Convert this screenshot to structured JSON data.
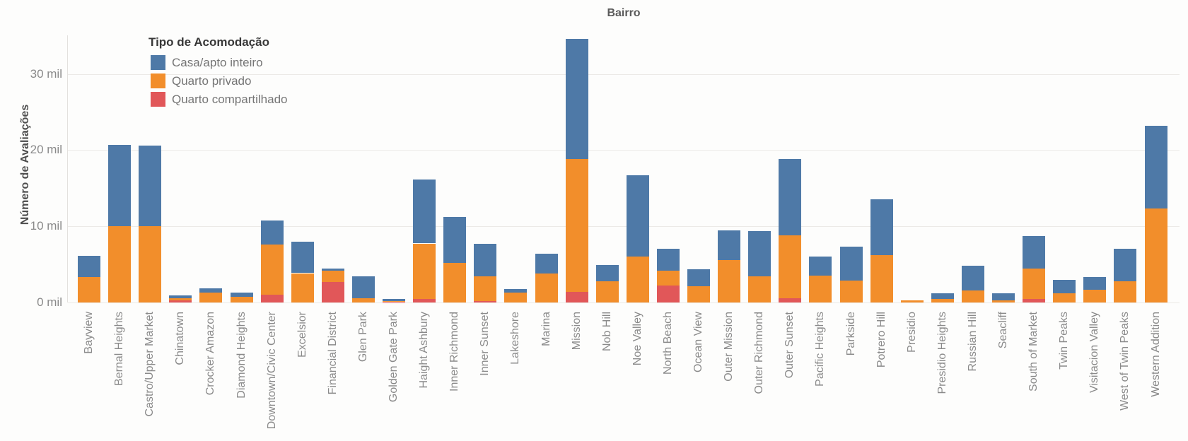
{
  "title": "Bairro",
  "y_axis": {
    "title": "Número de Avaliações",
    "ticks": [
      {
        "label": "0 mil",
        "value": 0
      },
      {
        "label": "10 mil",
        "value": 10
      },
      {
        "label": "20 mil",
        "value": 20
      },
      {
        "label": "30 mil",
        "value": 30
      }
    ]
  },
  "legend": {
    "title": "Tipo de Acomodação",
    "items": [
      {
        "key": "casa-apto-inteiro",
        "label": "Casa/apto inteiro",
        "color": "#4e79a7"
      },
      {
        "key": "quarto-privado",
        "label": "Quarto privado",
        "color": "#f28e2b"
      },
      {
        "key": "quarto-compartilhado",
        "label": "Quarto compartilhado",
        "color": "#e15759"
      }
    ]
  },
  "colors": {
    "casa_apto_inteiro": "#4e79a7",
    "quarto_privado": "#f28e2b",
    "quarto_compartilhado": "#e15759",
    "gridline": "#eceae7",
    "tick_text": "#8a8a8a"
  },
  "chart_data": {
    "type": "bar",
    "stacked": true,
    "title": "Bairro",
    "xlabel": "Bairro",
    "ylabel": "Número de Avaliações",
    "unit": "mil (thousands of reviews)",
    "ylim": [
      0,
      36
    ],
    "grid": "horizontal",
    "legend_position": "top-left inside plot",
    "y_tick_labels": [
      "0 mil",
      "10 mil",
      "20 mil",
      "30 mil"
    ],
    "categories": [
      "Bayview",
      "Bernal Heights",
      "Castro/Upper Market",
      "Chinatown",
      "Crocker Amazon",
      "Diamond Heights",
      "Downtown/Civic Center",
      "Excelsior",
      "Financial District",
      "Glen Park",
      "Golden Gate Park",
      "Haight Ashbury",
      "Inner Richmond",
      "Inner Sunset",
      "Lakeshore",
      "Marina",
      "Mission",
      "Nob Hill",
      "Noe Valley",
      "North Beach",
      "Ocean View",
      "Outer Mission",
      "Outer Richmond",
      "Outer Sunset",
      "Pacific Heights",
      "Parkside",
      "Potrero Hill",
      "Presidio",
      "Presidio Heights",
      "Russian Hill",
      "Seacliff",
      "South of Market",
      "Twin Peaks",
      "Visitacion Valley",
      "West of Twin Peaks",
      "Western Addition"
    ],
    "series": [
      {
        "name": "Casa/apto inteiro",
        "color": "#4e79a7",
        "values": [
          2.8,
          10.7,
          10.6,
          0.35,
          0.6,
          0.55,
          3.15,
          4.1,
          0.35,
          2.9,
          0.25,
          8.4,
          6.0,
          4.3,
          0.45,
          2.6,
          15.8,
          2.1,
          10.7,
          2.9,
          2.25,
          3.9,
          6.0,
          10.0,
          2.5,
          4.4,
          7.3,
          0,
          0.75,
          3.2,
          0.9,
          4.3,
          1.75,
          1.7,
          4.35,
          10.9
        ]
      },
      {
        "name": "Quarto privado",
        "color": "#f28e2b",
        "values": [
          3.3,
          10.0,
          10.0,
          0.25,
          1.3,
          0.75,
          6.6,
          3.85,
          1.45,
          0.55,
          0.15,
          7.3,
          5.2,
          3.3,
          1.3,
          3.85,
          17.5,
          2.8,
          6.0,
          1.9,
          2.15,
          5.6,
          3.4,
          8.3,
          3.55,
          2.9,
          6.25,
          0.3,
          0.45,
          1.6,
          0.3,
          4.0,
          1.2,
          1.65,
          2.75,
          12.3
        ]
      },
      {
        "name": "Quarto compartilhado",
        "color": "#e15759",
        "values": [
          0,
          0,
          0,
          0.3,
          0,
          0,
          1.0,
          0,
          2.7,
          0,
          0.05,
          0.45,
          0,
          0.15,
          0,
          0,
          1.35,
          0,
          0,
          2.25,
          0,
          0,
          0,
          0.55,
          0,
          0,
          0,
          0,
          0,
          0,
          0,
          0.45,
          0,
          0,
          0,
          0
        ]
      }
    ],
    "stack_order_bottom_to_top": [
      "Quarto compartilhado",
      "Quarto privado",
      "Casa/apto inteiro"
    ]
  }
}
